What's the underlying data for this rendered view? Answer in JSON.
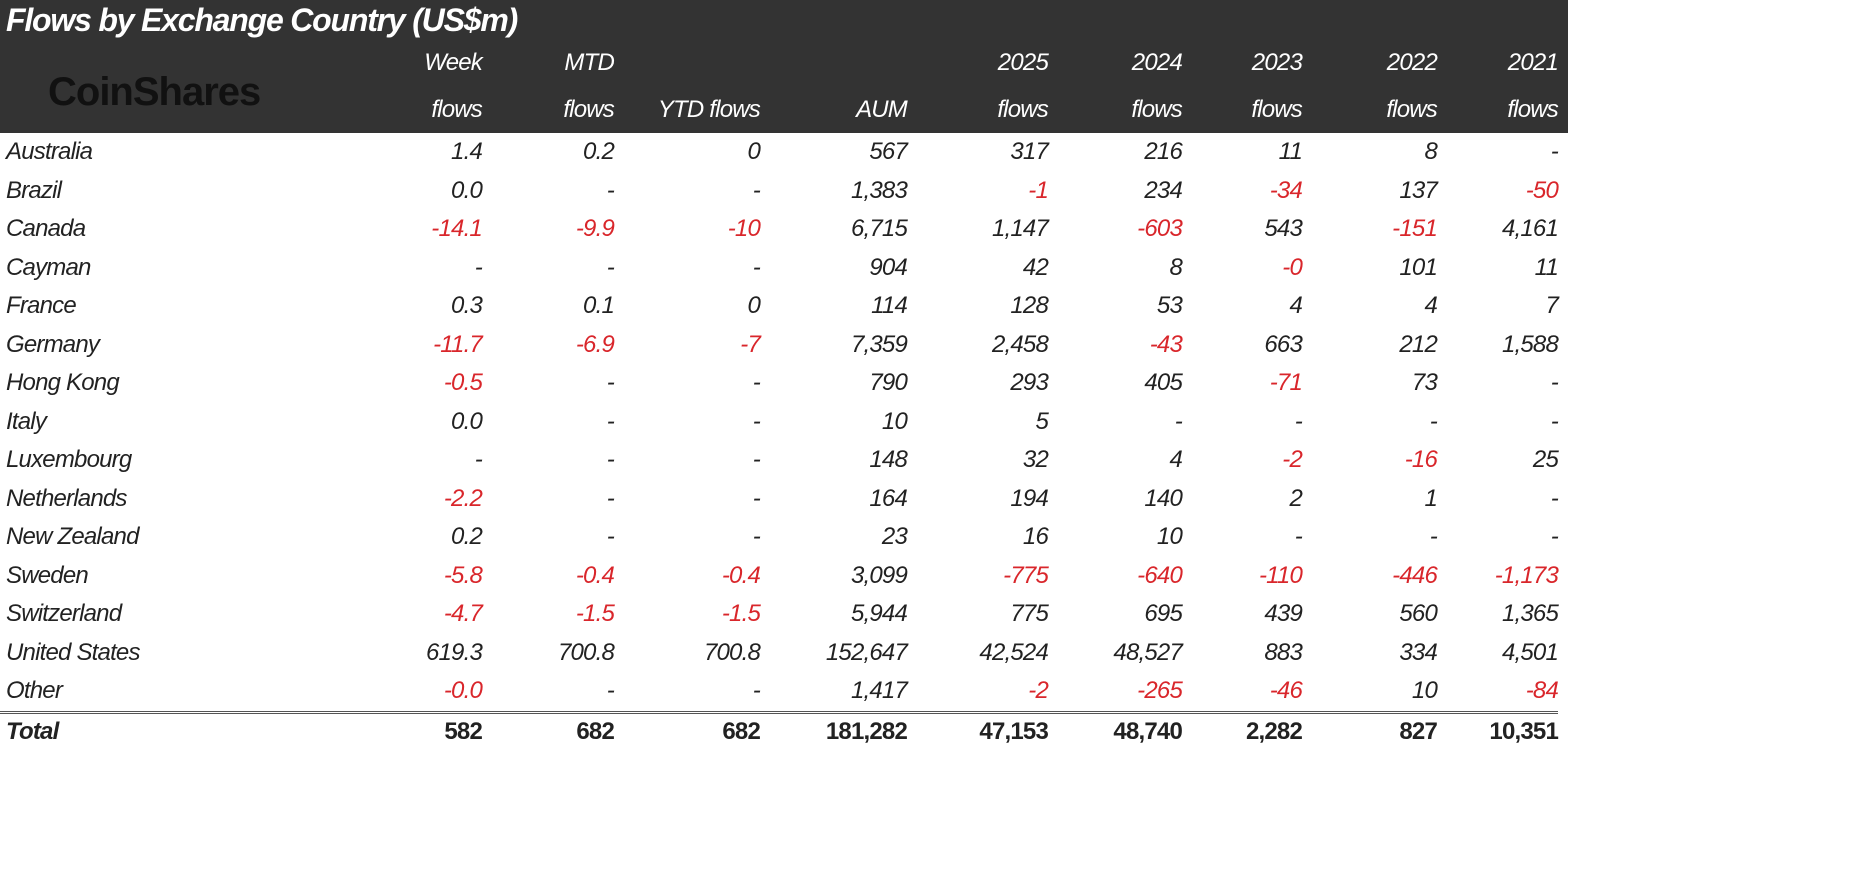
{
  "title": "Flows by Exchange Country (US$m)",
  "logo_text": "CoinShares",
  "colors": {
    "header_bg": "#333333",
    "negative": "#d9262b",
    "text": "#222222"
  },
  "columns": [
    {
      "line1": "",
      "line2": ""
    },
    {
      "line1": "Week",
      "line2": "flows"
    },
    {
      "line1": "MTD",
      "line2": "flows"
    },
    {
      "line1": "",
      "line2": "YTD flows"
    },
    {
      "line1": "",
      "line2": "AUM"
    },
    {
      "line1": "2025",
      "line2": "flows"
    },
    {
      "line1": "2024",
      "line2": "flows"
    },
    {
      "line1": "2023",
      "line2": "flows"
    },
    {
      "line1": "2022",
      "line2": "flows"
    },
    {
      "line1": "2021",
      "line2": "flows"
    }
  ],
  "rows": [
    [
      "Australia",
      "1.4",
      "0.2",
      "0",
      "567",
      "317",
      "216",
      "11",
      "8",
      "-"
    ],
    [
      "Brazil",
      "0.0",
      "-",
      "-",
      "1,383",
      "-1",
      "234",
      "-34",
      "137",
      "-50"
    ],
    [
      "Canada",
      "-14.1",
      "-9.9",
      "-10",
      "6,715",
      "1,147",
      "-603",
      "543",
      "-151",
      "4,161"
    ],
    [
      "Cayman",
      "-",
      "-",
      "-",
      "904",
      "42",
      "8",
      "-0",
      "101",
      "11"
    ],
    [
      "France",
      "0.3",
      "0.1",
      "0",
      "114",
      "128",
      "53",
      "4",
      "4",
      "7"
    ],
    [
      "Germany",
      "-11.7",
      "-6.9",
      "-7",
      "7,359",
      "2,458",
      "-43",
      "663",
      "212",
      "1,588"
    ],
    [
      "Hong Kong",
      "-0.5",
      "-",
      "-",
      "790",
      "293",
      "405",
      "-71",
      "73",
      "-"
    ],
    [
      "Italy",
      "0.0",
      "-",
      "-",
      "10",
      "5",
      "-",
      "-",
      "-",
      "-"
    ],
    [
      "Luxembourg",
      "-",
      "-",
      "-",
      "148",
      "32",
      "4",
      "-2",
      "-16",
      "25"
    ],
    [
      "Netherlands",
      "-2.2",
      "-",
      "-",
      "164",
      "194",
      "140",
      "2",
      "1",
      "-"
    ],
    [
      "New Zealand",
      "0.2",
      "-",
      "-",
      "23",
      "16",
      "10",
      "-",
      "-",
      "-"
    ],
    [
      "Sweden",
      "-5.8",
      "-0.4",
      "-0.4",
      "3,099",
      "-775",
      "-640",
      "-110",
      "-446",
      "-1,173"
    ],
    [
      "Switzerland",
      "-4.7",
      "-1.5",
      "-1.5",
      "5,944",
      "775",
      "695",
      "439",
      "560",
      "1,365"
    ],
    [
      "United States",
      "619.3",
      "700.8",
      "700.8",
      "152,647",
      "42,524",
      "48,527",
      "883",
      "334",
      "4,501"
    ],
    [
      "Other",
      "-0.0",
      "-",
      "-",
      "1,417",
      "-2",
      "-265",
      "-46",
      "10",
      "-84"
    ]
  ],
  "total": [
    "Total",
    "582",
    "682",
    "682",
    "181,282",
    "47,153",
    "48,740",
    "2,282",
    "827",
    "10,351"
  ]
}
